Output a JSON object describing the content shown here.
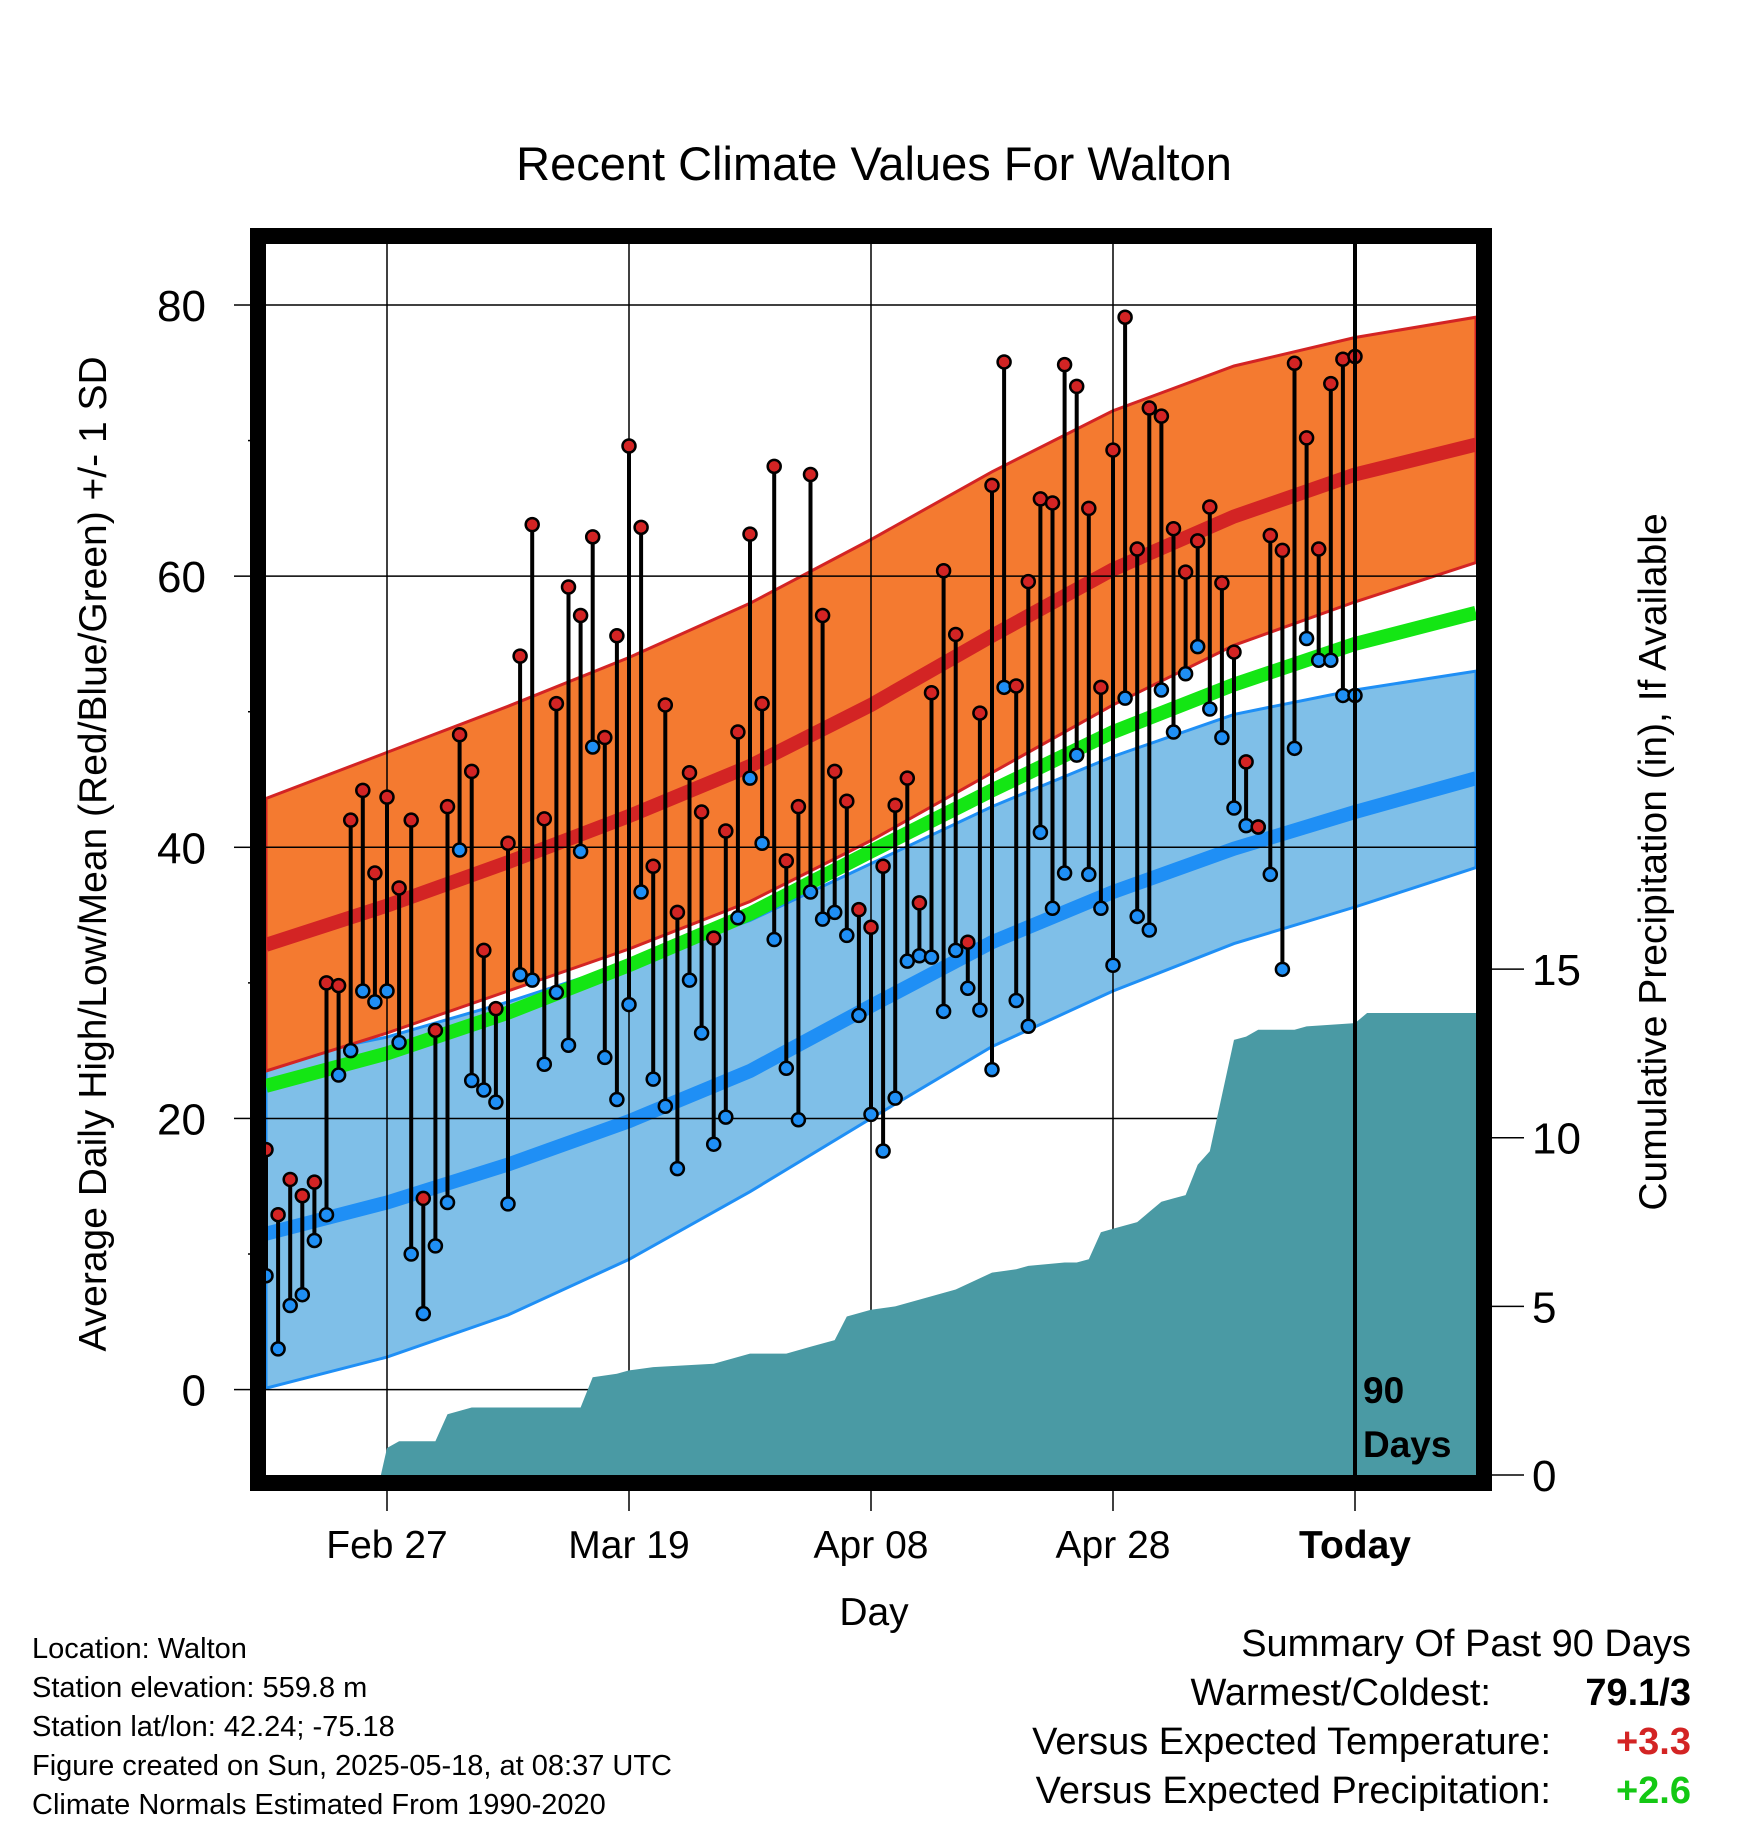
{
  "chart_data": {
    "type": "line",
    "title": "Recent Climate Values For Walton",
    "xlabel": "Day",
    "ylabel_left": "Average Daily High/Low/Mean (Red/Blue/Green) +/- 1 SD",
    "ylabel_right": "Cumulative Precipitation (in), If Available",
    "x_tick_labels": [
      "Feb 27",
      "Mar 19",
      "Apr 08",
      "Apr 28",
      "Today"
    ],
    "x_tick_days": [
      10,
      30,
      50,
      70,
      90
    ],
    "xlim_days": [
      0,
      100
    ],
    "y_ticks_left": [
      0,
      20,
      40,
      60,
      80
    ],
    "ylim_left": [
      -6.3,
      84.5
    ],
    "y_ticks_right": [
      0,
      5,
      10,
      15
    ],
    "ylim_right": [
      0,
      36.5
    ],
    "today_label": [
      "90",
      "Days"
    ],
    "colors": {
      "high_band": "#f47a30",
      "high_mean": "#d32424",
      "low_band": "#7fbfe8",
      "low_mean": "#1f8ff5",
      "mean_normal": "#14e614",
      "precip": "#4a9aa4",
      "high_dot": "#d32424",
      "low_dot": "#1f8ff5"
    },
    "normals": {
      "day": [
        0,
        10,
        20,
        30,
        40,
        50,
        60,
        70,
        80,
        90,
        100
      ],
      "high_mean": [
        32.8,
        35.7,
        38.9,
        42.3,
        46.0,
        50.5,
        55.6,
        60.5,
        64.4,
        67.5,
        69.7
      ],
      "high_sd_upper": [
        43.6,
        47.0,
        50.4,
        54.0,
        58.0,
        62.7,
        67.7,
        72.2,
        75.5,
        77.6,
        79.1
      ],
      "high_sd_lower": [
        23.5,
        26.3,
        29.4,
        32.5,
        36.0,
        40.5,
        45.5,
        50.5,
        54.9,
        58.1,
        61.0
      ],
      "mean_normal": [
        22.4,
        24.8,
        27.8,
        31.3,
        35.1,
        39.7,
        44.2,
        48.5,
        52.0,
        55.0,
        57.3
      ],
      "low_mean": [
        11.5,
        13.8,
        16.6,
        19.8,
        23.5,
        28.3,
        33.0,
        36.7,
        39.9,
        42.6,
        45.1
      ],
      "low_sd_upper": [
        24.2,
        26.0,
        28.6,
        31.5,
        34.6,
        38.8,
        43.0,
        46.7,
        49.8,
        51.6,
        53.0
      ],
      "low_sd_lower": [
        0.1,
        2.4,
        5.5,
        9.6,
        14.6,
        20.0,
        25.3,
        29.4,
        32.9,
        35.6,
        38.5
      ]
    },
    "series": [
      {
        "name": "High",
        "values": [
          17.7,
          12.9,
          15.5,
          14.3,
          15.3,
          30.0,
          29.8,
          42.0,
          44.2,
          38.1,
          43.7,
          37.0,
          42.0,
          14.1,
          26.5,
          43.0,
          48.3,
          45.6,
          32.4,
          28.1,
          40.3,
          54.1,
          63.8,
          42.1,
          50.6,
          59.2,
          57.1,
          62.9,
          48.1,
          55.6,
          69.6,
          63.6,
          38.6,
          50.5,
          35.2,
          45.5,
          42.6,
          33.3,
          41.2,
          48.5,
          63.1,
          50.6,
          68.1,
          39.0,
          43.0,
          67.5,
          57.1,
          45.6,
          43.4,
          35.4,
          34.1,
          38.6,
          43.1,
          45.1,
          35.9,
          51.4,
          60.4,
          55.7,
          33.0,
          49.9,
          66.7,
          75.8,
          51.9,
          59.6,
          65.7,
          65.4,
          75.6,
          74.0,
          65.0,
          51.8,
          69.3,
          79.1,
          62.0,
          72.4,
          71.8,
          63.5,
          60.3,
          62.6,
          65.1,
          59.5,
          54.4,
          46.3,
          41.5,
          63.0,
          61.9,
          75.7,
          70.2,
          62.0,
          74.2,
          76.0,
          76.2
        ]
      },
      {
        "name": "Low",
        "values": [
          8.4,
          3.0,
          6.2,
          7.0,
          11.0,
          12.9,
          23.2,
          25.0,
          29.4,
          28.6,
          29.4,
          25.6,
          10.0,
          5.6,
          10.6,
          13.8,
          39.8,
          22.8,
          22.1,
          21.2,
          13.7,
          30.6,
          30.2,
          24.0,
          29.3,
          25.4,
          39.7,
          47.4,
          24.5,
          21.4,
          28.4,
          36.7,
          22.9,
          20.9,
          16.3,
          30.2,
          26.3,
          18.1,
          20.1,
          34.8,
          45.1,
          40.3,
          33.2,
          23.7,
          19.9,
          36.7,
          34.7,
          35.2,
          33.5,
          27.6,
          20.3,
          17.6,
          21.5,
          31.6,
          32.0,
          31.9,
          27.9,
          32.4,
          29.6,
          28.0,
          23.6,
          51.8,
          28.7,
          26.8,
          41.1,
          35.5,
          38.1,
          46.8,
          38.0,
          35.5,
          31.3,
          51.0,
          34.9,
          33.9,
          51.6,
          48.5,
          52.8,
          54.8,
          50.2,
          48.1,
          42.9,
          41.6,
          41.5,
          38.0,
          31.0,
          47.3,
          55.4,
          53.8,
          53.8,
          51.2,
          51.2
        ]
      },
      {
        "name": "Cumulative Precipitation",
        "day": [
          0,
          9.5,
          10,
          11,
          14,
          15,
          17,
          18,
          22,
          26,
          27,
          29,
          30,
          32,
          37,
          40,
          43,
          45,
          47,
          48,
          50,
          52,
          53,
          56,
          57,
          60,
          62,
          63,
          66,
          67,
          68,
          69,
          70,
          72,
          73,
          74,
          75,
          76,
          77,
          78,
          80,
          81,
          82,
          85,
          86,
          90,
          91,
          100
        ],
        "values": [
          0,
          0,
          0.8,
          1.0,
          1.0,
          1.8,
          2.0,
          2.0,
          2.0,
          2.0,
          2.9,
          3.0,
          3.1,
          3.2,
          3.3,
          3.6,
          3.6,
          3.8,
          4.0,
          4.7,
          4.9,
          5.0,
          5.1,
          5.4,
          5.5,
          6.0,
          6.1,
          6.2,
          6.3,
          6.3,
          6.4,
          7.2,
          7.3,
          7.5,
          7.8,
          8.1,
          8.2,
          8.3,
          9.2,
          9.6,
          12.9,
          13.0,
          13.2,
          13.2,
          13.3,
          13.4,
          13.7,
          13.7
        ]
      }
    ]
  },
  "info": {
    "location": "Location: Walton",
    "elevation": "Station elevation: 559.8 m",
    "latlon": "Station lat/lon: 42.24; -75.18",
    "created": "Figure created on Sun, 2025-05-18, at 08:37 UTC",
    "normals": "Climate Normals Estimated From 1990-2020"
  },
  "summary": {
    "title": "Summary Of Past 90 Days",
    "warmest_label": "Warmest/Coldest:",
    "warmest_value": "79.1/3",
    "temp_label": "Versus Expected Temperature:",
    "temp_value": "+3.3",
    "temp_color": "#d32424",
    "precip_label": "Versus Expected Precipitation:",
    "precip_value": "+2.6",
    "precip_color": "#14c814"
  }
}
